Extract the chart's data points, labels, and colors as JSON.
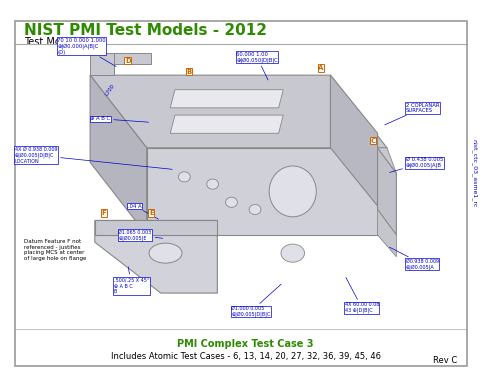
{
  "title": "NIST PMI Test Models - 2012",
  "subtitle": "Test Model 3",
  "background_color": "#ffffff",
  "border_color": "#999999",
  "title_color": "#2e8b00",
  "subtitle_color": "#000000",
  "annotation_color": "#0000cc",
  "body_text_color": "#000000",
  "footer_center": "PMI Complex Test Case 3",
  "footer_sub": "Includes Atomic Test Cases - 6, 13, 14, 20, 27, 32, 36, 39, 45, 46",
  "footer_color": "#2e8b00",
  "footer_sub_color": "#000000",
  "rev_label": "Rev C",
  "side_label": "nist_ctc_03_asme1_rc",
  "note_text": "Datum Feature F not\nreferenced - justifies\nplacing MCS at center\nof large hole on flange",
  "part_color": "#c8c8d0",
  "part_edge_color": "#888888"
}
